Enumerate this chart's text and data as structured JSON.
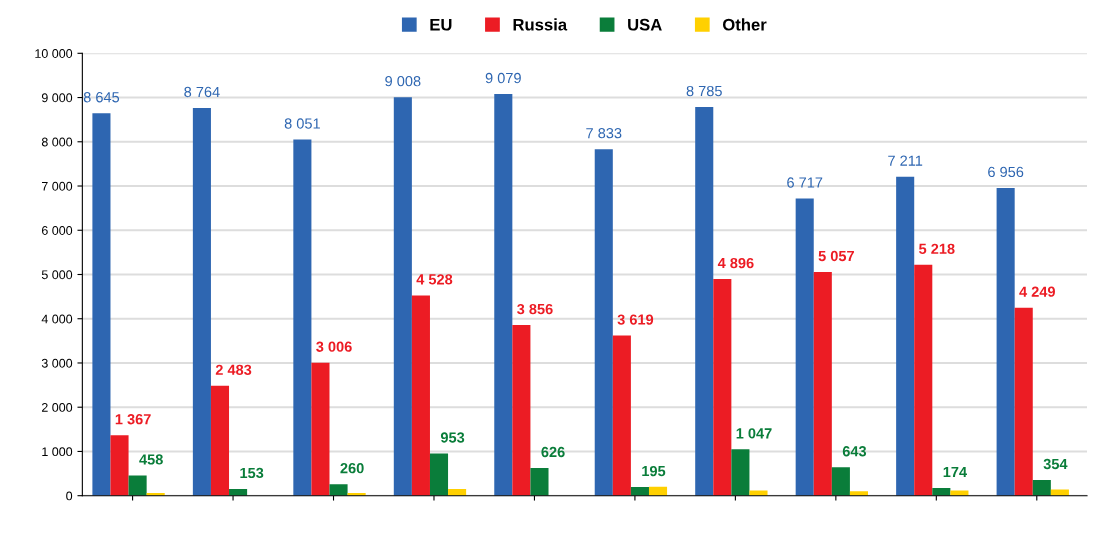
{
  "chart_data": {
    "type": "bar",
    "categories": [
      null,
      null,
      null,
      null,
      null,
      null,
      null,
      null,
      null,
      null
    ],
    "series": [
      {
        "name": "EU",
        "color": "#2e66b1",
        "values": [
          8645,
          8764,
          8051,
          9008,
          9079,
          7833,
          8785,
          6717,
          7211,
          6956
        ],
        "value_labels": [
          "8 645",
          "8 764",
          "8 051",
          "9 008",
          "9 079",
          "7 833",
          "8 785",
          "6 717",
          "7 211",
          "6 956"
        ]
      },
      {
        "name": "Russia",
        "color": "#ec1c24",
        "values": [
          1367,
          2483,
          3006,
          4528,
          3856,
          3619,
          4896,
          5057,
          5218,
          4249
        ],
        "value_labels": [
          "1 367",
          "2 483",
          "3 006",
          "4 528",
          "3 856",
          "3 619",
          "4 896",
          "5 057",
          "5 218",
          "4 249"
        ]
      },
      {
        "name": "USA",
        "color": "#0a7d3a",
        "values": [
          458,
          153,
          260,
          953,
          626,
          195,
          1047,
          643,
          174,
          354
        ],
        "value_labels": [
          "458",
          "153",
          "260",
          "953",
          "626",
          "195",
          "1 047",
          "643",
          "174",
          "354"
        ]
      },
      {
        "name": "Other",
        "color": "#ffd000",
        "values": [
          60,
          0,
          60,
          150,
          0,
          200,
          120,
          100,
          120,
          140
        ]
      }
    ],
    "ylim": [
      0,
      10000
    ],
    "yticks": [
      {
        "value": 0,
        "label": "0"
      },
      {
        "value": 1000,
        "label": "1 000"
      },
      {
        "value": 2000,
        "label": "2 000"
      },
      {
        "value": 3000,
        "label": "3 000"
      },
      {
        "value": 4000,
        "label": "4 000"
      },
      {
        "value": 5000,
        "label": "5 000"
      },
      {
        "value": 6000,
        "label": "6 000"
      },
      {
        "value": 7000,
        "label": "7 000"
      },
      {
        "value": 8000,
        "label": "8 000"
      },
      {
        "value": 9000,
        "label": "9 000"
      },
      {
        "value": 10000,
        "label": "10 000"
      }
    ],
    "grid": "y",
    "legend": "top"
  }
}
